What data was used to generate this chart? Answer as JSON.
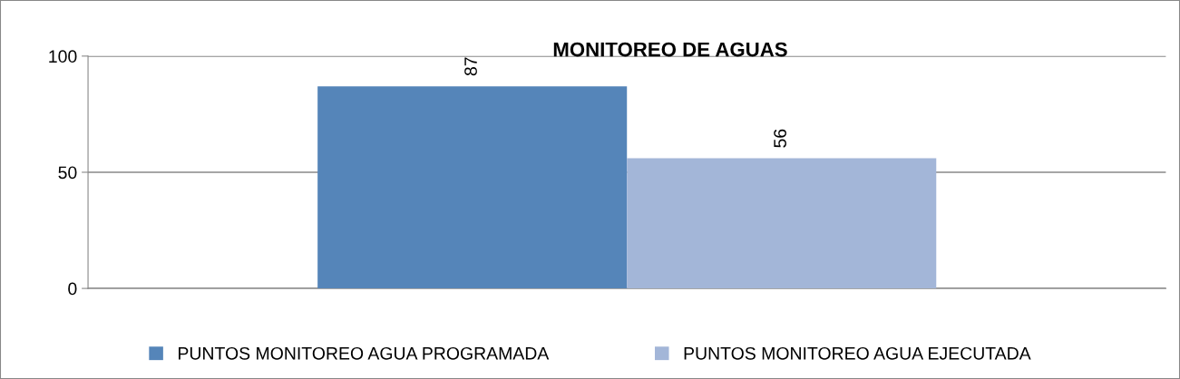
{
  "chart_data": {
    "type": "bar",
    "title": "MONITOREO DE AGUAS",
    "categories": [
      null
    ],
    "series": [
      {
        "name": "PUNTOS MONITOREO AGUA PROGRAMADA",
        "color": "#5585b9",
        "values": [
          87
        ]
      },
      {
        "name": "PUNTOS MONITOREO AGUA EJECUTADA",
        "color": "#a3b6d8",
        "values": [
          56
        ]
      }
    ],
    "ylim": [
      0,
      100
    ],
    "yticks": [
      0,
      50,
      100
    ],
    "grid": "y",
    "legend": "bottom",
    "data_labels": true
  }
}
